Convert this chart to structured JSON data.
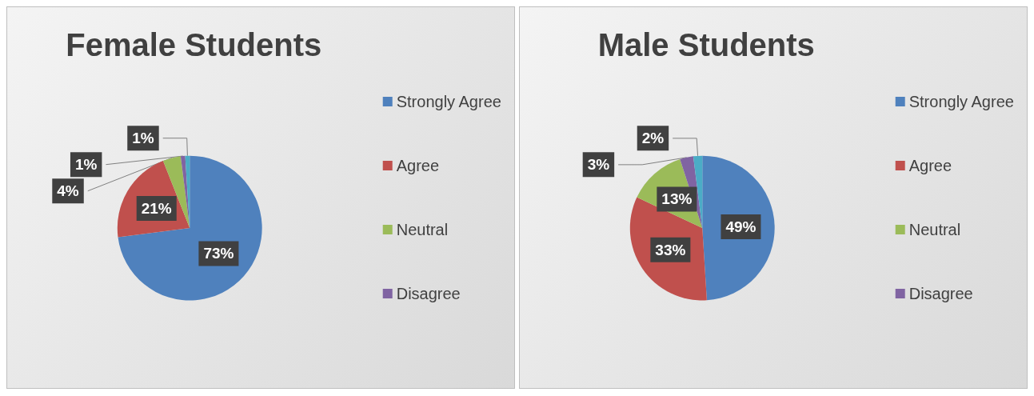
{
  "chart_data": [
    {
      "type": "pie",
      "title": "Female Students",
      "categories": [
        "Strongly Agree",
        "Agree",
        "Neutral",
        "Disagree",
        null
      ],
      "values": [
        73,
        21,
        4,
        1,
        1
      ],
      "colors": [
        "#4f81bd",
        "#c0504d",
        "#9bbb59",
        "#8064a2",
        "#4bacc6"
      ],
      "value_labels": [
        "73%",
        "21%",
        "4%",
        "1%",
        "1%"
      ],
      "legend": "right"
    },
    {
      "type": "pie",
      "title": "Male Students",
      "categories": [
        "Strongly Agree",
        "Agree",
        "Neutral",
        "Disagree",
        null
      ],
      "values": [
        49,
        33,
        13,
        3,
        2
      ],
      "colors": [
        "#4f81bd",
        "#c0504d",
        "#9bbb59",
        "#8064a2",
        "#4bacc6"
      ],
      "value_labels": [
        "49%",
        "33%",
        "13%",
        "3%",
        "2%"
      ],
      "legend": "right"
    }
  ]
}
